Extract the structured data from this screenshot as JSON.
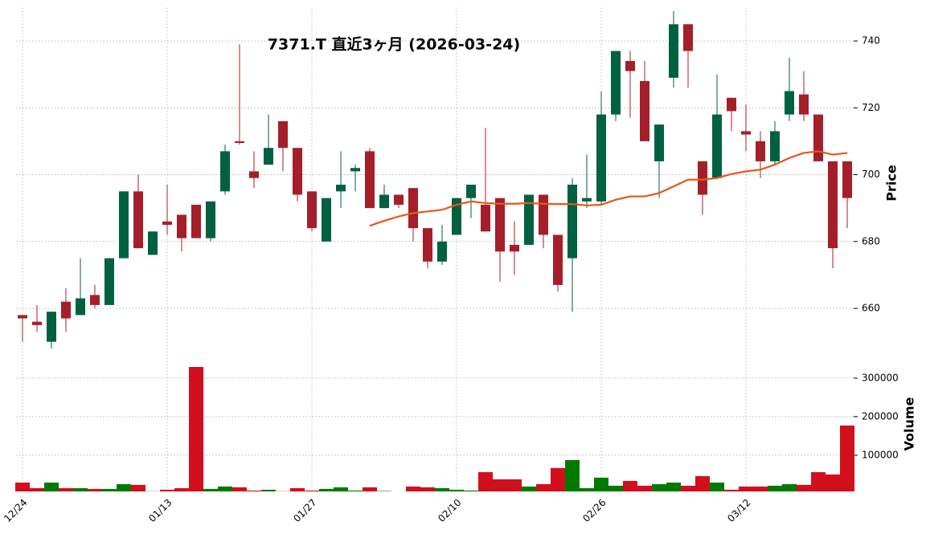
{
  "chart_data": {
    "type": "candlestick",
    "title": "7371.T  直近3ヶ月  (2026-03-24)",
    "categories": [
      "12/24",
      null,
      null,
      null,
      null,
      null,
      null,
      null,
      null,
      null,
      "01/13",
      null,
      null,
      null,
      null,
      null,
      null,
      null,
      null,
      null,
      "01/27",
      null,
      null,
      null,
      null,
      null,
      null,
      null,
      null,
      null,
      "02/10",
      null,
      null,
      null,
      null,
      null,
      null,
      null,
      null,
      null,
      "02/26",
      null,
      null,
      null,
      null,
      null,
      null,
      null,
      null,
      null,
      "03/12",
      null,
      null,
      null,
      null,
      null,
      null,
      null
    ],
    "open": [
      658,
      656,
      650,
      662,
      658,
      664,
      661,
      675,
      695,
      676,
      686,
      688,
      691,
      681,
      695,
      710,
      701,
      703,
      716,
      708,
      695,
      680,
      695,
      701,
      707,
      690,
      694,
      696,
      684,
      674,
      682,
      693,
      691,
      693,
      679,
      679,
      694,
      682,
      675,
      692,
      692,
      718,
      734,
      728,
      704,
      729,
      745,
      704,
      699,
      723,
      713,
      710,
      704,
      718,
      724,
      718,
      704,
      704
    ],
    "high": [
      658,
      661,
      659,
      666,
      675,
      667,
      675,
      695,
      700,
      683,
      697,
      688,
      691,
      692,
      709,
      739,
      707,
      718,
      716,
      708,
      695,
      693,
      707,
      703,
      708,
      697,
      694,
      696,
      684,
      685,
      693,
      697,
      714,
      693,
      686,
      694,
      694,
      682,
      699,
      706,
      725,
      737,
      737,
      734,
      715,
      749,
      745,
      704,
      730,
      723,
      721,
      713,
      716,
      735,
      731,
      718,
      704,
      704
    ],
    "low": [
      650,
      653,
      648,
      653,
      658,
      660,
      661,
      675,
      678,
      676,
      682,
      677,
      681,
      680,
      694,
      709,
      696,
      703,
      701,
      692,
      683,
      680,
      690,
      695,
      690,
      690,
      690,
      680,
      672,
      673,
      682,
      687,
      683,
      668,
      670,
      679,
      678,
      665,
      659,
      690,
      691,
      716,
      717,
      710,
      693,
      726,
      726,
      688,
      699,
      713,
      707,
      699,
      703,
      716,
      716,
      704,
      672,
      684
    ],
    "close": [
      657,
      655,
      659,
      657,
      663,
      661,
      675,
      695,
      678,
      683,
      685,
      681,
      681,
      692,
      707,
      709.5,
      699,
      708,
      708,
      694,
      684,
      693,
      697,
      702,
      690,
      694,
      691,
      684,
      674,
      680,
      693,
      697,
      683,
      677,
      677,
      694,
      682,
      667,
      697,
      693,
      718,
      737,
      731,
      710,
      715,
      745,
      737,
      694,
      718,
      719,
      712,
      704,
      713,
      725,
      718,
      704,
      678,
      693
    ],
    "up_color": "#00613f",
    "down_color": "#a41f2a",
    "ylabel": "Price",
    "ylim": [
      646,
      750
    ],
    "yticks": [
      660,
      680,
      700,
      720,
      740
    ],
    "grid": true,
    "moving_average": {
      "color": "#e8561c",
      "values": [
        null,
        null,
        null,
        null,
        null,
        null,
        null,
        null,
        null,
        null,
        null,
        null,
        null,
        null,
        null,
        null,
        null,
        null,
        null,
        null,
        null,
        null,
        null,
        null,
        684.7,
        686.2,
        687.5,
        688.5,
        689,
        689.5,
        691,
        692,
        691.5,
        691.3,
        691.3,
        691.5,
        691.3,
        691.2,
        691.2,
        690.8,
        691,
        692.5,
        693.5,
        693.5,
        694.5,
        696.5,
        698.5,
        698.5,
        699,
        700.2,
        701,
        701.5,
        703,
        705,
        706.5,
        707,
        706,
        706.5
      ]
    },
    "volume": {
      "ylabel": "Volume",
      "values": [
        29000,
        14600,
        29000,
        14600,
        14600,
        12500,
        12500,
        25000,
        23000,
        6500,
        10400,
        14600,
        329000,
        12500,
        18750,
        16700,
        8300,
        10400,
        6500,
        14600,
        8300,
        12500,
        16700,
        8300,
        16700,
        7000,
        null,
        18750,
        16700,
        14600,
        10400,
        8300,
        56000,
        37500,
        37500,
        18750,
        25000,
        66700,
        87500,
        14600,
        41700,
        20800,
        33300,
        20800,
        25000,
        29000,
        20800,
        45800,
        29000,
        10400,
        18750,
        18750,
        20800,
        25000,
        23000,
        56000,
        50000,
        177000
      ],
      "up_color": "#007a00",
      "down_color": "#d20f1c",
      "ylim": [
        6000,
        354000
      ],
      "yticks": [
        100000,
        200000,
        300000
      ]
    }
  }
}
